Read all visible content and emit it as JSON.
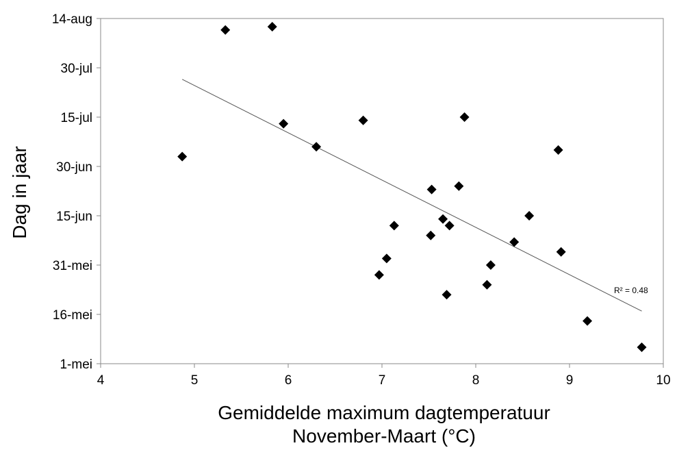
{
  "chart_data": {
    "type": "scatter",
    "title": "",
    "xlabel_line1": "Gemiddelde maximum dagtemperatuur",
    "xlabel_line2": "November-Maart (°C)",
    "ylabel": "Dag in jaar",
    "xlim": [
      4,
      10
    ],
    "ylim": [
      "1-mei",
      "14-aug"
    ],
    "x_ticks": [
      4,
      5,
      6,
      7,
      8,
      9,
      10
    ],
    "y_ticks": [
      {
        "label": "1-mei",
        "day": 0
      },
      {
        "label": "16-mei",
        "day": 15
      },
      {
        "label": "31-mei",
        "day": 30
      },
      {
        "label": "15-jun",
        "day": 45
      },
      {
        "label": "30-jun",
        "day": 60
      },
      {
        "label": "15-jul",
        "day": 75
      },
      {
        "label": "30-jul",
        "day": 90
      },
      {
        "label": "14-aug",
        "day": 105
      }
    ],
    "points": [
      {
        "x": 4.87,
        "y": 63
      },
      {
        "x": 5.33,
        "y": 101.5
      },
      {
        "x": 5.83,
        "y": 102.5
      },
      {
        "x": 5.95,
        "y": 73
      },
      {
        "x": 6.3,
        "y": 66
      },
      {
        "x": 6.8,
        "y": 74
      },
      {
        "x": 6.97,
        "y": 27
      },
      {
        "x": 7.05,
        "y": 32
      },
      {
        "x": 7.13,
        "y": 42
      },
      {
        "x": 7.52,
        "y": 39
      },
      {
        "x": 7.53,
        "y": 53
      },
      {
        "x": 7.65,
        "y": 44
      },
      {
        "x": 7.69,
        "y": 21
      },
      {
        "x": 7.72,
        "y": 42
      },
      {
        "x": 7.82,
        "y": 54
      },
      {
        "x": 7.88,
        "y": 75
      },
      {
        "x": 8.12,
        "y": 24
      },
      {
        "x": 8.16,
        "y": 30
      },
      {
        "x": 8.41,
        "y": 37
      },
      {
        "x": 8.57,
        "y": 45
      },
      {
        "x": 8.88,
        "y": 65
      },
      {
        "x": 8.91,
        "y": 34
      },
      {
        "x": 9.19,
        "y": 13
      },
      {
        "x": 9.77,
        "y": 5
      }
    ],
    "trendline": {
      "x": [
        4.87,
        9.77
      ],
      "y": [
        86.5,
        16
      ]
    },
    "annotation": "R² = 0.48",
    "marker_color": "#000000",
    "trendline_color": "#555555",
    "grid": false,
    "legend": "none"
  }
}
